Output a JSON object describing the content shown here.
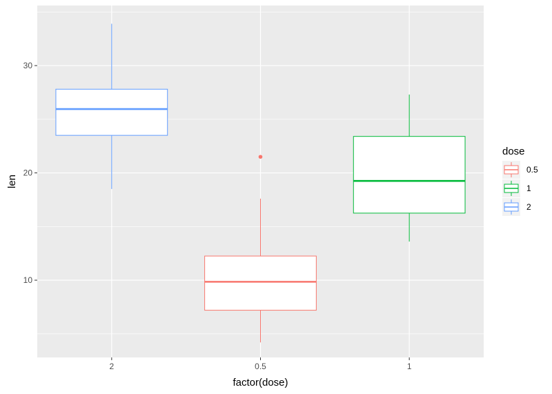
{
  "chart_data": {
    "type": "boxplot",
    "xlabel": "factor(dose)",
    "ylabel": "len",
    "categories": [
      "2",
      "0.5",
      "1"
    ],
    "ylim": [
      2.8,
      35.6
    ],
    "yticks": [
      10,
      20,
      30
    ],
    "grid": true,
    "boxes": [
      {
        "category": "2",
        "group": "2",
        "min": 18.5,
        "q1": 23.5,
        "median": 25.95,
        "q3": 27.8,
        "max": 33.9,
        "outliers": []
      },
      {
        "category": "0.5",
        "group": "0.5",
        "min": 4.2,
        "q1": 7.2,
        "median": 9.85,
        "q3": 12.25,
        "max": 17.6,
        "outliers": [
          21.5
        ]
      },
      {
        "category": "1",
        "group": "1",
        "min": 13.6,
        "q1": 16.25,
        "median": 19.25,
        "q3": 23.4,
        "max": 27.3,
        "outliers": []
      }
    ],
    "legend": {
      "title": "dose",
      "position": "right",
      "items": [
        {
          "label": "0.5",
          "color": "#F8766D"
        },
        {
          "label": "1",
          "color": "#00BA38"
        },
        {
          "label": "2",
          "color": "#619CFF"
        }
      ]
    },
    "colors": {
      "panel": "#EBEBEB",
      "grid": "#FFFFFF",
      "box_fill": "#FFFFFF"
    }
  }
}
